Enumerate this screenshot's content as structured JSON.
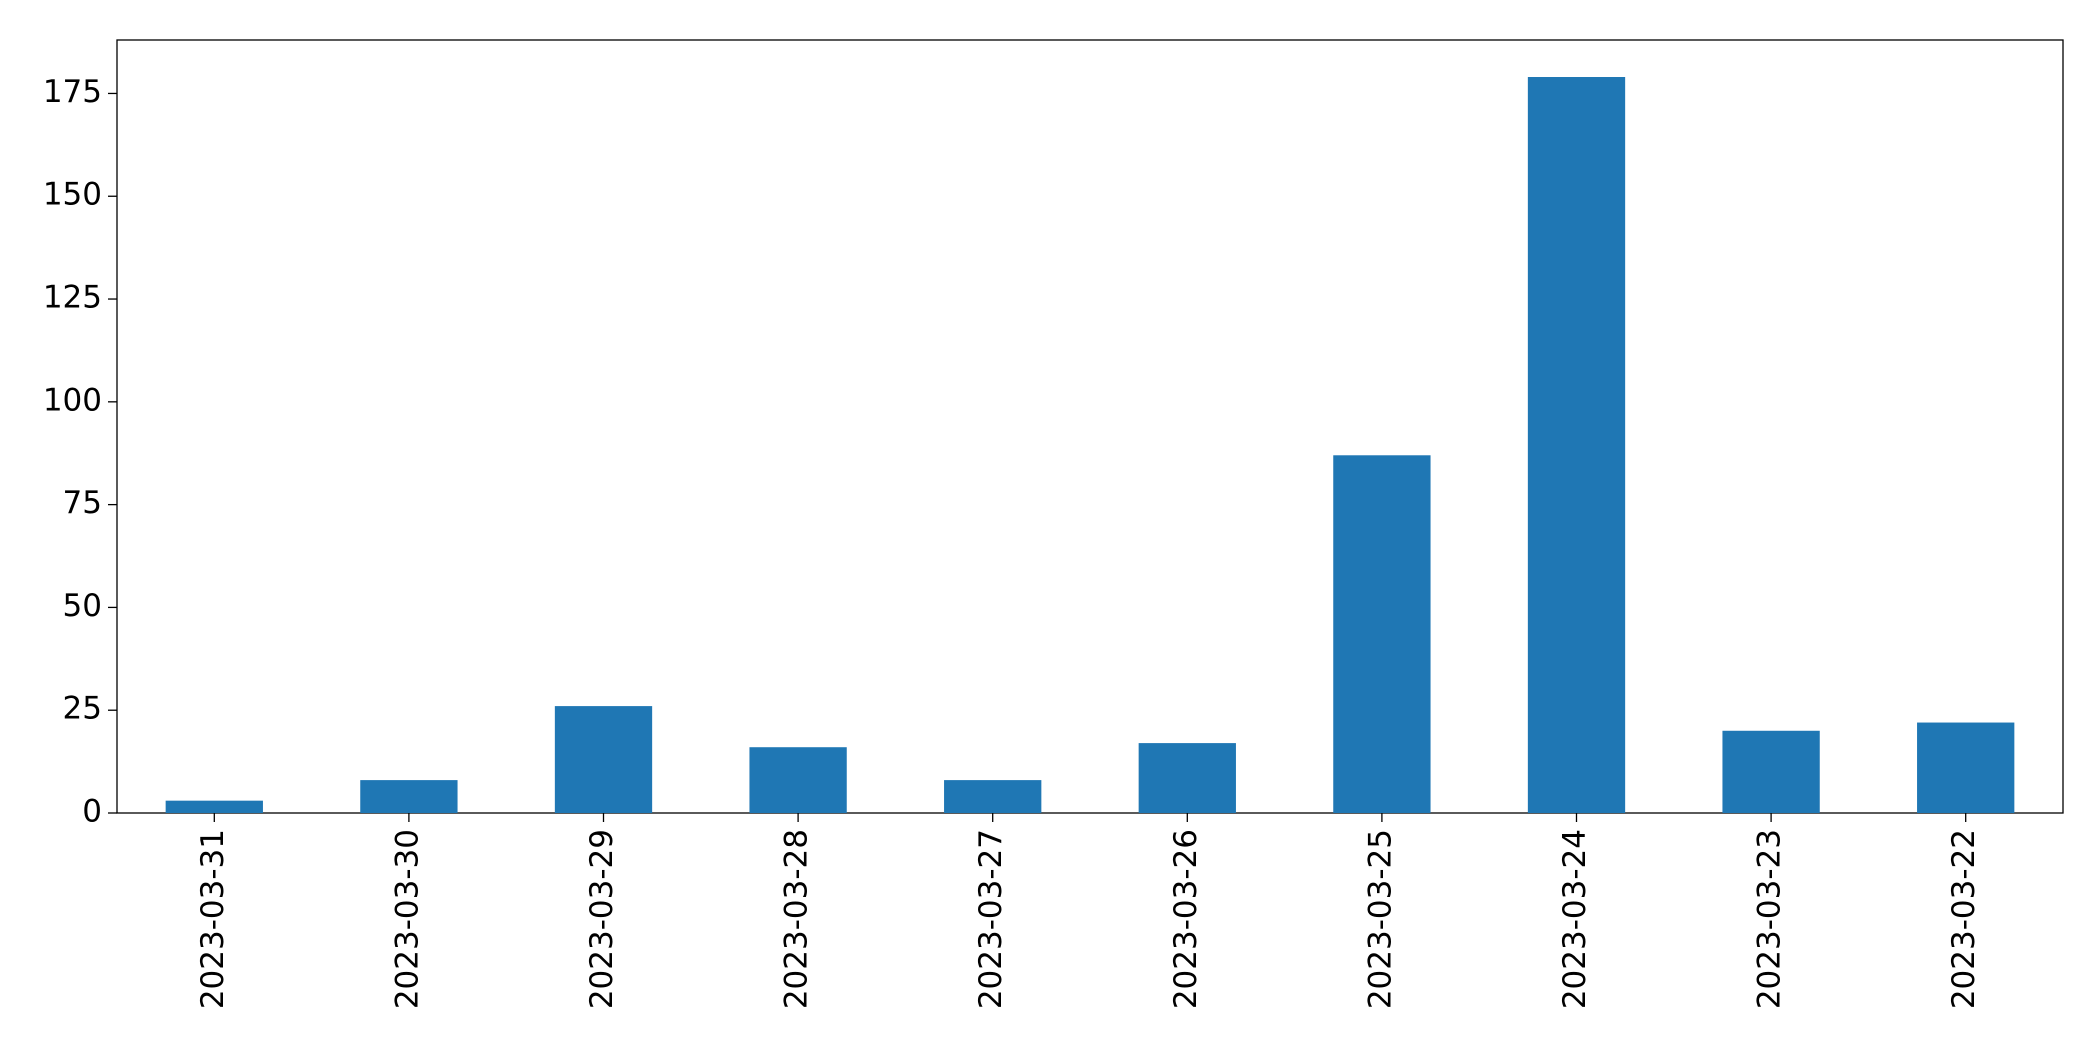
{
  "chart_data": {
    "type": "bar",
    "categories": [
      "2023-03-31",
      "2023-03-30",
      "2023-03-29",
      "2023-03-28",
      "2023-03-27",
      "2023-03-26",
      "2023-03-25",
      "2023-03-24",
      "2023-03-23",
      "2023-03-22"
    ],
    "values": [
      3,
      8,
      26,
      16,
      8,
      17,
      87,
      179,
      20,
      22
    ],
    "color": "#1f77b4",
    "ylim": [
      0,
      188
    ],
    "yticks": [
      0,
      25,
      50,
      75,
      100,
      125,
      150,
      175
    ],
    "grid": false
  }
}
